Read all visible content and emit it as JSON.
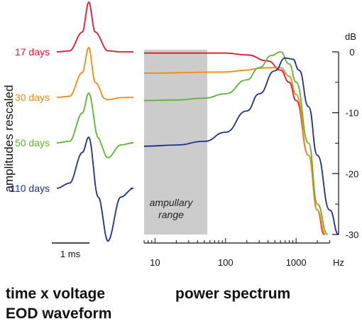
{
  "colors": {
    "17 days": "#e3182d",
    "30 days": "#f28a12",
    "50 days": "#5cb52e",
    "110 days": "#1f2f8c",
    "ampullary": "#cccccc",
    "axis": "#111111"
  },
  "captions": {
    "left_line1": "time x voltage",
    "left_line2": "EOD waveform",
    "right": "power spectrum"
  },
  "chart_data": [
    {
      "type": "line",
      "title": "",
      "ylabel": "amplitudes rescaled",
      "scalebar_label": "1 ms",
      "series": [
        {
          "name": "17 days",
          "t": [
            0,
            0.4,
            0.8,
            1.0,
            1.2,
            1.6,
            2.0,
            2.4
          ],
          "values": [
            0,
            0.02,
            0.4,
            1.0,
            0.4,
            0.02,
            0,
            0
          ]
        },
        {
          "name": "30 days",
          "t": [
            0,
            0.4,
            0.8,
            1.0,
            1.2,
            1.6,
            2.0,
            2.4
          ],
          "values": [
            0,
            0.02,
            0.5,
            1.0,
            0.3,
            -0.15,
            -0.02,
            0
          ]
        },
        {
          "name": "50 days",
          "t": [
            0,
            0.4,
            0.8,
            1.0,
            1.3,
            1.6,
            2.0,
            2.4
          ],
          "values": [
            0,
            0.03,
            0.6,
            1.0,
            0.1,
            -0.7,
            -0.1,
            0
          ]
        },
        {
          "name": "110 days",
          "t": [
            0,
            0.4,
            0.8,
            1.0,
            1.3,
            1.6,
            2.0,
            2.4
          ],
          "values": [
            0,
            0.1,
            0.7,
            1.0,
            -0.2,
            -1.2,
            -0.2,
            0
          ]
        }
      ]
    },
    {
      "type": "line",
      "title": "",
      "xlabel": "Hz",
      "ylabel": "dB",
      "xscale": "log",
      "xlim": [
        7,
        4000
      ],
      "ylim": [
        -30,
        0
      ],
      "xticks": [
        10,
        100,
        1000
      ],
      "yticks": [
        0,
        -10,
        -20,
        -30
      ],
      "shaded_region": {
        "x": [
          7,
          55
        ],
        "label_line1": "ampullary",
        "label_line2": "range"
      },
      "series": [
        {
          "name": "17 days",
          "x": [
            7,
            100,
            200,
            400,
            600,
            800,
            1000,
            1500,
            2000,
            2500
          ],
          "y": [
            -0.2,
            -0.2,
            -0.5,
            -1.5,
            -3,
            -5,
            -8,
            -17,
            -26,
            -30
          ]
        },
        {
          "name": "30 days",
          "x": [
            7,
            100,
            200,
            300,
            400,
            600,
            800,
            1000,
            1500,
            2000,
            2600
          ],
          "y": [
            -3.5,
            -3.3,
            -3.0,
            -2.7,
            -2.6,
            -2.6,
            -4,
            -7,
            -17,
            -26,
            -30
          ]
        },
        {
          "name": "50 days",
          "x": [
            7,
            20,
            50,
            100,
            200,
            300,
            450,
            600,
            800,
            1000,
            1500,
            2000,
            2800
          ],
          "y": [
            -8.0,
            -7.9,
            -7.6,
            -6.9,
            -4.6,
            -2.6,
            -0.6,
            0.0,
            -2,
            -5,
            -15,
            -25,
            -30
          ]
        },
        {
          "name": "110 days",
          "x": [
            7,
            20,
            50,
            100,
            200,
            300,
            500,
            700,
            900,
            1100,
            1500,
            2000,
            3000,
            4000
          ],
          "y": [
            -15.5,
            -15.3,
            -14.7,
            -13.2,
            -9.7,
            -6.9,
            -3.1,
            -1.0,
            -1.2,
            -3,
            -9,
            -17,
            -26,
            -30
          ]
        }
      ]
    }
  ]
}
